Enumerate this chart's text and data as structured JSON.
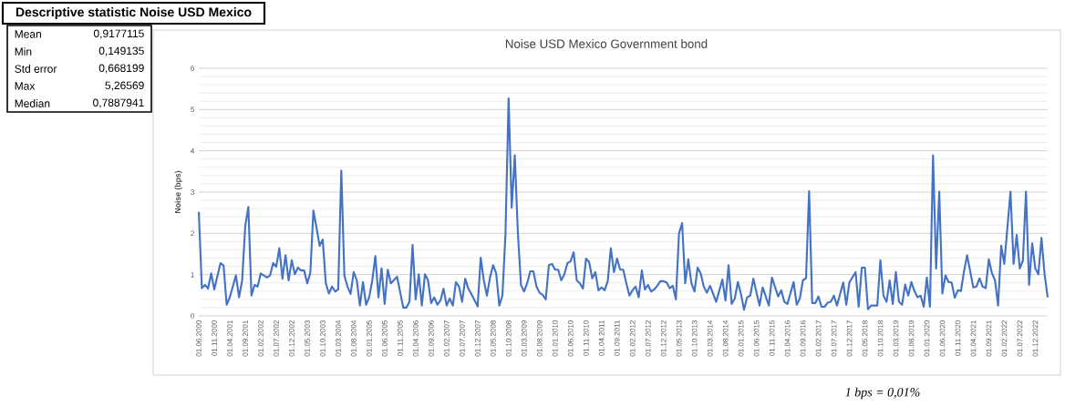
{
  "chart_data": [
    {
      "type": "other",
      "title": "Descriptive statistic Noise USD Mexico",
      "annotations": [
        "Mean",
        "0,9177115",
        "Min",
        "0,149135",
        "Std error",
        "0,668199",
        "Max",
        "5,26569",
        "Median",
        "0,7887941"
      ]
    },
    {
      "type": "line",
      "title": "Noise USD Mexico Government bond",
      "ylabel": "Noise (bps)",
      "annotations": [
        "1 bps = 0,01%"
      ],
      "x": [
        "2000-06",
        "2000-07",
        "2000-08",
        "2000-09",
        "2000-10",
        "2000-11",
        "2001-01",
        "2001-02",
        "2001-03",
        "2001-04",
        "2001-06",
        "2001-07",
        "2001-08",
        "2001-09",
        "2001-10",
        "2001-11",
        "2001-12",
        "2002-01",
        "2002-02",
        "2002-04",
        "2002-05",
        "2002-06",
        "2002-07",
        "2002-08",
        "2002-09",
        "2002-10",
        "2002-11",
        "2002-12",
        "2003-01",
        "2003-02",
        "2003-03",
        "2003-04",
        "2003-05",
        "2003-06",
        "2003-07",
        "2003-08",
        "2003-09",
        "2003-10",
        "2003-11",
        "2003-12",
        "2004-01",
        "2004-02",
        "2004-03",
        "2004-04",
        "2004-05",
        "2004-06",
        "2004-07",
        "2004-08",
        "2004-09",
        "2004-10",
        "2004-11",
        "2004-12",
        "2005-01",
        "2005-02",
        "2005-03",
        "2005-04",
        "2005-05",
        "2005-06",
        "2005-07",
        "2005-08",
        "2005-10",
        "2005-12",
        "2006-01",
        "2006-02",
        "2006-03",
        "2006-04",
        "2006-05",
        "2006-06",
        "2006-07",
        "2006-08",
        "2006-09",
        "2006-10",
        "2006-11",
        "2006-12",
        "2007-01",
        "2007-02",
        "2007-03",
        "2007-04",
        "2007-05",
        "2007-06",
        "2007-07",
        "2007-08",
        "2007-09",
        "2007-10",
        "2007-12",
        "2008-01",
        "2008-02",
        "2008-03",
        "2008-04",
        "2008-05",
        "2008-06",
        "2008-07",
        "2008-08",
        "2008-09",
        "2008-10",
        "2008-11",
        "2008-12",
        "2009-01",
        "2009-02",
        "2009-03",
        "2009-04",
        "2009-05",
        "2009-06",
        "2009-07",
        "2009-08",
        "2009-09",
        "2009-10",
        "2009-11",
        "2009-12",
        "2010-01",
        "2010-02",
        "2010-03",
        "2010-04",
        "2010-05",
        "2010-06",
        "2010-07",
        "2010-08",
        "2010-09",
        "2010-10",
        "2010-11",
        "2010-12",
        "2011-01",
        "2011-02",
        "2011-03",
        "2011-04",
        "2011-05",
        "2011-06",
        "2011-07",
        "2011-08",
        "2011-09",
        "2011-10",
        "2011-11",
        "2011-12",
        "2012-01",
        "2012-02",
        "2012-03",
        "2012-04",
        "2012-05",
        "2012-06",
        "2012-07",
        "2012-08",
        "2012-09",
        "2012-10",
        "2012-11",
        "2012-12",
        "2013-01",
        "2013-02",
        "2013-03",
        "2013-04",
        "2013-05",
        "2013-06",
        "2013-07",
        "2013-08",
        "2013-09",
        "2013-10",
        "2013-11",
        "2013-12",
        "2014-01",
        "2014-02",
        "2014-03",
        "2014-04",
        "2014-05",
        "2014-07",
        "2014-08",
        "2014-09",
        "2014-10",
        "2014-11",
        "2014-12",
        "2015-01",
        "2015-02",
        "2015-03",
        "2015-04",
        "2015-05",
        "2015-07",
        "2015-08",
        "2015-10",
        "2015-11",
        "2016-01",
        "2016-02",
        "2016-03",
        "2016-04",
        "2016-06",
        "2016-07",
        "2016-08",
        "2016-09",
        "2016-10",
        "2016-11",
        "2016-12",
        "2017-01",
        "2017-02",
        "2017-03",
        "2017-04",
        "2017-05",
        "2017-06",
        "2017-07",
        "2017-08",
        "2017-09",
        "2017-10",
        "2017-11",
        "2017-12",
        "2018-02",
        "2018-03",
        "2018-04",
        "2018-05",
        "2018-06",
        "2018-07",
        "2018-09",
        "2018-10",
        "2018-11",
        "2018-12",
        "2019-01",
        "2019-02",
        "2019-03",
        "2019-04",
        "2019-05",
        "2019-06",
        "2019-07",
        "2019-08",
        "2019-09",
        "2019-10",
        "2019-11",
        "2019-12",
        "2020-01",
        "2020-02",
        "2020-03",
        "2020-04",
        "2020-05",
        "2020-06",
        "2020-07",
        "2020-08",
        "2020-09",
        "2020-10",
        "2020-11",
        "2020-12",
        "2021-01",
        "2021-02",
        "2021-03",
        "2021-04",
        "2021-05",
        "2021-06",
        "2021-07",
        "2021-08",
        "2021-09",
        "2021-10",
        "2021-11",
        "2021-12",
        "2022-01",
        "2022-02",
        "2022-04",
        "2022-05",
        "2022-06",
        "2022-07",
        "2022-08",
        "2022-09",
        "2022-10",
        "2022-11",
        "2022-12",
        "2023-01",
        "2023-02",
        "2023-03",
        "2023-04"
      ],
      "series": [
        {
          "color": "#4472c4",
          "values": [
            2.52,
            0.67,
            0.75,
            0.66,
            1.03,
            0.64,
            1.28,
            1.22,
            0.27,
            0.45,
            0.98,
            0.45,
            0.86,
            2.18,
            2.64,
            0.49,
            0.75,
            0.71,
            1.03,
            0.93,
            0.98,
            1.28,
            1.19,
            1.64,
            0.9,
            1.47,
            0.86,
            1.35,
            1.01,
            1.17,
            1.1,
            1.1,
            0.79,
            1.04,
            2.55,
            2.14,
            1.7,
            1.85,
            0.79,
            0.54,
            0.71,
            0.59,
            0.64,
            3.52,
            0.97,
            0.71,
            0.53,
            1.06,
            0.86,
            0.25,
            0.82,
            0.27,
            0.45,
            0.86,
            1.45,
            0.45,
            1.15,
            0.29,
            1.12,
            0.79,
            0.95,
            0.2,
            0.2,
            0.34,
            1.72,
            0.4,
            1.01,
            0.25,
            1.01,
            0.86,
            0.31,
            0.45,
            0.27,
            0.37,
            0.66,
            0.25,
            0.42,
            0.25,
            0.82,
            0.71,
            0.34,
            0.9,
            0.66,
            0.53,
            0.23,
            1.41,
            0.86,
            0.49,
            0.93,
            1.23,
            1.03,
            0.25,
            0.49,
            2.0,
            5.27,
            2.62,
            3.89,
            2.0,
            0.75,
            0.59,
            0.79,
            1.08,
            1.08,
            0.71,
            0.56,
            0.51,
            0.4,
            1.23,
            1.26,
            1.12,
            1.12,
            0.86,
            1.01,
            1.28,
            1.32,
            1.54,
            0.86,
            0.79,
            0.66,
            1.39,
            1.3,
            0.91,
            1.06,
            0.62,
            0.69,
            0.62,
            0.84,
            1.64,
            1.06,
            1.39,
            1.12,
            1.12,
            0.79,
            0.49,
            0.62,
            0.71,
            0.45,
            1.1,
            0.64,
            0.75,
            0.59,
            0.64,
            0.73,
            0.84,
            0.84,
            0.81,
            0.67,
            0.73,
            0.4,
            2.0,
            2.25,
            0.79,
            1.37,
            0.79,
            0.59,
            1.17,
            1.03,
            0.71,
            0.56,
            0.73,
            0.54,
            0.34,
            0.88,
            0.37,
            1.23,
            0.29,
            0.42,
            0.82,
            0.53,
            0.15,
            0.45,
            0.49,
            0.9,
            0.25,
            0.69,
            0.25,
            0.93,
            0.47,
            0.62,
            0.34,
            0.29,
            0.82,
            0.27,
            0.42,
            0.86,
            0.91,
            3.02,
            0.31,
            0.31,
            0.47,
            0.22,
            0.22,
            0.32,
            0.34,
            0.49,
            0.25,
            0.53,
            0.81,
            0.27,
            0.81,
            1.06,
            0.22,
            1.17,
            1.17,
            0.16,
            0.25,
            0.25,
            1.35,
            0.49,
            0.34,
            0.86,
            0.29,
            1.06,
            0.34,
            0.27,
            0.76,
            0.49,
            0.82,
            0.6,
            0.45,
            0.49,
            0.22,
            0.93,
            0.22,
            3.89,
            1.15,
            3.01,
            0.54,
            0.98,
            0.82,
            0.81,
            0.44,
            0.62,
            0.6,
            1.08,
            1.47,
            1.08,
            0.69,
            0.71,
            0.91,
            0.71,
            0.67,
            1.37,
            1.04,
            0.86,
            0.25,
            1.7,
            1.26,
            3.01,
            1.26,
            1.96,
            1.15,
            1.34,
            3.01,
            0.75,
            1.76,
            1.15,
            1.01,
            1.89,
            1.01,
            0.45
          ]
        }
      ],
      "xlim": [
        "2000-06",
        "2023-04"
      ],
      "xticks": [
        {
          "value": "2000-06",
          "label": "01.06.2000"
        },
        {
          "value": "2000-11",
          "label": "01.11.2000"
        },
        {
          "value": "2001-04",
          "label": "01.04.2001"
        },
        {
          "value": "2001-09",
          "label": "01.09.2001"
        },
        {
          "value": "2002-02",
          "label": "01.02.2002"
        },
        {
          "value": "2002-07",
          "label": "01.07.2002"
        },
        {
          "value": "2002-12",
          "label": "01.12.2002"
        },
        {
          "value": "2003-05",
          "label": "01.05.2003"
        },
        {
          "value": "2003-10",
          "label": "01.10.2003"
        },
        {
          "value": "2004-03",
          "label": "01.03.2004"
        },
        {
          "value": "2004-08",
          "label": "01.08.2004"
        },
        {
          "value": "2005-01",
          "label": "01.01.2005"
        },
        {
          "value": "2005-06",
          "label": "01.06.2005"
        },
        {
          "value": "2005-11",
          "label": "01.11.2005"
        },
        {
          "value": "2006-04",
          "label": "01.04.2006"
        },
        {
          "value": "2006-09",
          "label": "01.09.2006"
        },
        {
          "value": "2007-02",
          "label": "01.02.2007"
        },
        {
          "value": "2007-07",
          "label": "01.07.2007"
        },
        {
          "value": "2007-12",
          "label": "01.12.2007"
        },
        {
          "value": "2008-05",
          "label": "01.05.2008"
        },
        {
          "value": "2008-10",
          "label": "01.10.2008"
        },
        {
          "value": "2009-03",
          "label": "01.03.2009"
        },
        {
          "value": "2009-08",
          "label": "01.08.2009"
        },
        {
          "value": "2010-01",
          "label": "01.01.2010"
        },
        {
          "value": "2010-06",
          "label": "01.06.2010"
        },
        {
          "value": "2010-11",
          "label": "01.11.2010"
        },
        {
          "value": "2011-04",
          "label": "01.04.2011"
        },
        {
          "value": "2011-09",
          "label": "01.09.2011"
        },
        {
          "value": "2012-02",
          "label": "01.02.2012"
        },
        {
          "value": "2012-07",
          "label": "01.07.2012"
        },
        {
          "value": "2012-12",
          "label": "01.12.2012"
        },
        {
          "value": "2013-05",
          "label": "01.05.2013"
        },
        {
          "value": "2013-10",
          "label": "01.10.2013"
        },
        {
          "value": "2014-03",
          "label": "01.03.2014"
        },
        {
          "value": "2014-08",
          "label": "01.08.2014"
        },
        {
          "value": "2015-01",
          "label": "01.01.2015"
        },
        {
          "value": "2015-06",
          "label": "01.06.2015"
        },
        {
          "value": "2015-11",
          "label": "01.11.2015"
        },
        {
          "value": "2016-04",
          "label": "01.04.2016"
        },
        {
          "value": "2016-09",
          "label": "01.09.2016"
        },
        {
          "value": "2017-02",
          "label": "01.02.2017"
        },
        {
          "value": "2017-07",
          "label": "01.07.2017"
        },
        {
          "value": "2017-12",
          "label": "01.12.2017"
        },
        {
          "value": "2018-05",
          "label": "01.05.2018"
        },
        {
          "value": "2018-10",
          "label": "01.10.2018"
        },
        {
          "value": "2019-03",
          "label": "01.03.2019"
        },
        {
          "value": "2019-08",
          "label": "01.08.2019"
        },
        {
          "value": "2020-01",
          "label": "01.01.2020"
        },
        {
          "value": "2020-06",
          "label": "01.06.2020"
        },
        {
          "value": "2020-11",
          "label": "01.11.2020"
        },
        {
          "value": "2021-04",
          "label": "01.04.2021"
        },
        {
          "value": "2021-09",
          "label": "01.09.2021"
        },
        {
          "value": "2022-02",
          "label": "01.02.2022"
        },
        {
          "value": "2022-07",
          "label": "01.07.2022"
        },
        {
          "value": "2022-12",
          "label": "01.12.2022"
        }
      ],
      "ylim": [
        0,
        6
      ],
      "yticks": [
        0,
        1,
        2,
        3,
        4,
        5,
        6
      ],
      "grid": "y"
    }
  ]
}
